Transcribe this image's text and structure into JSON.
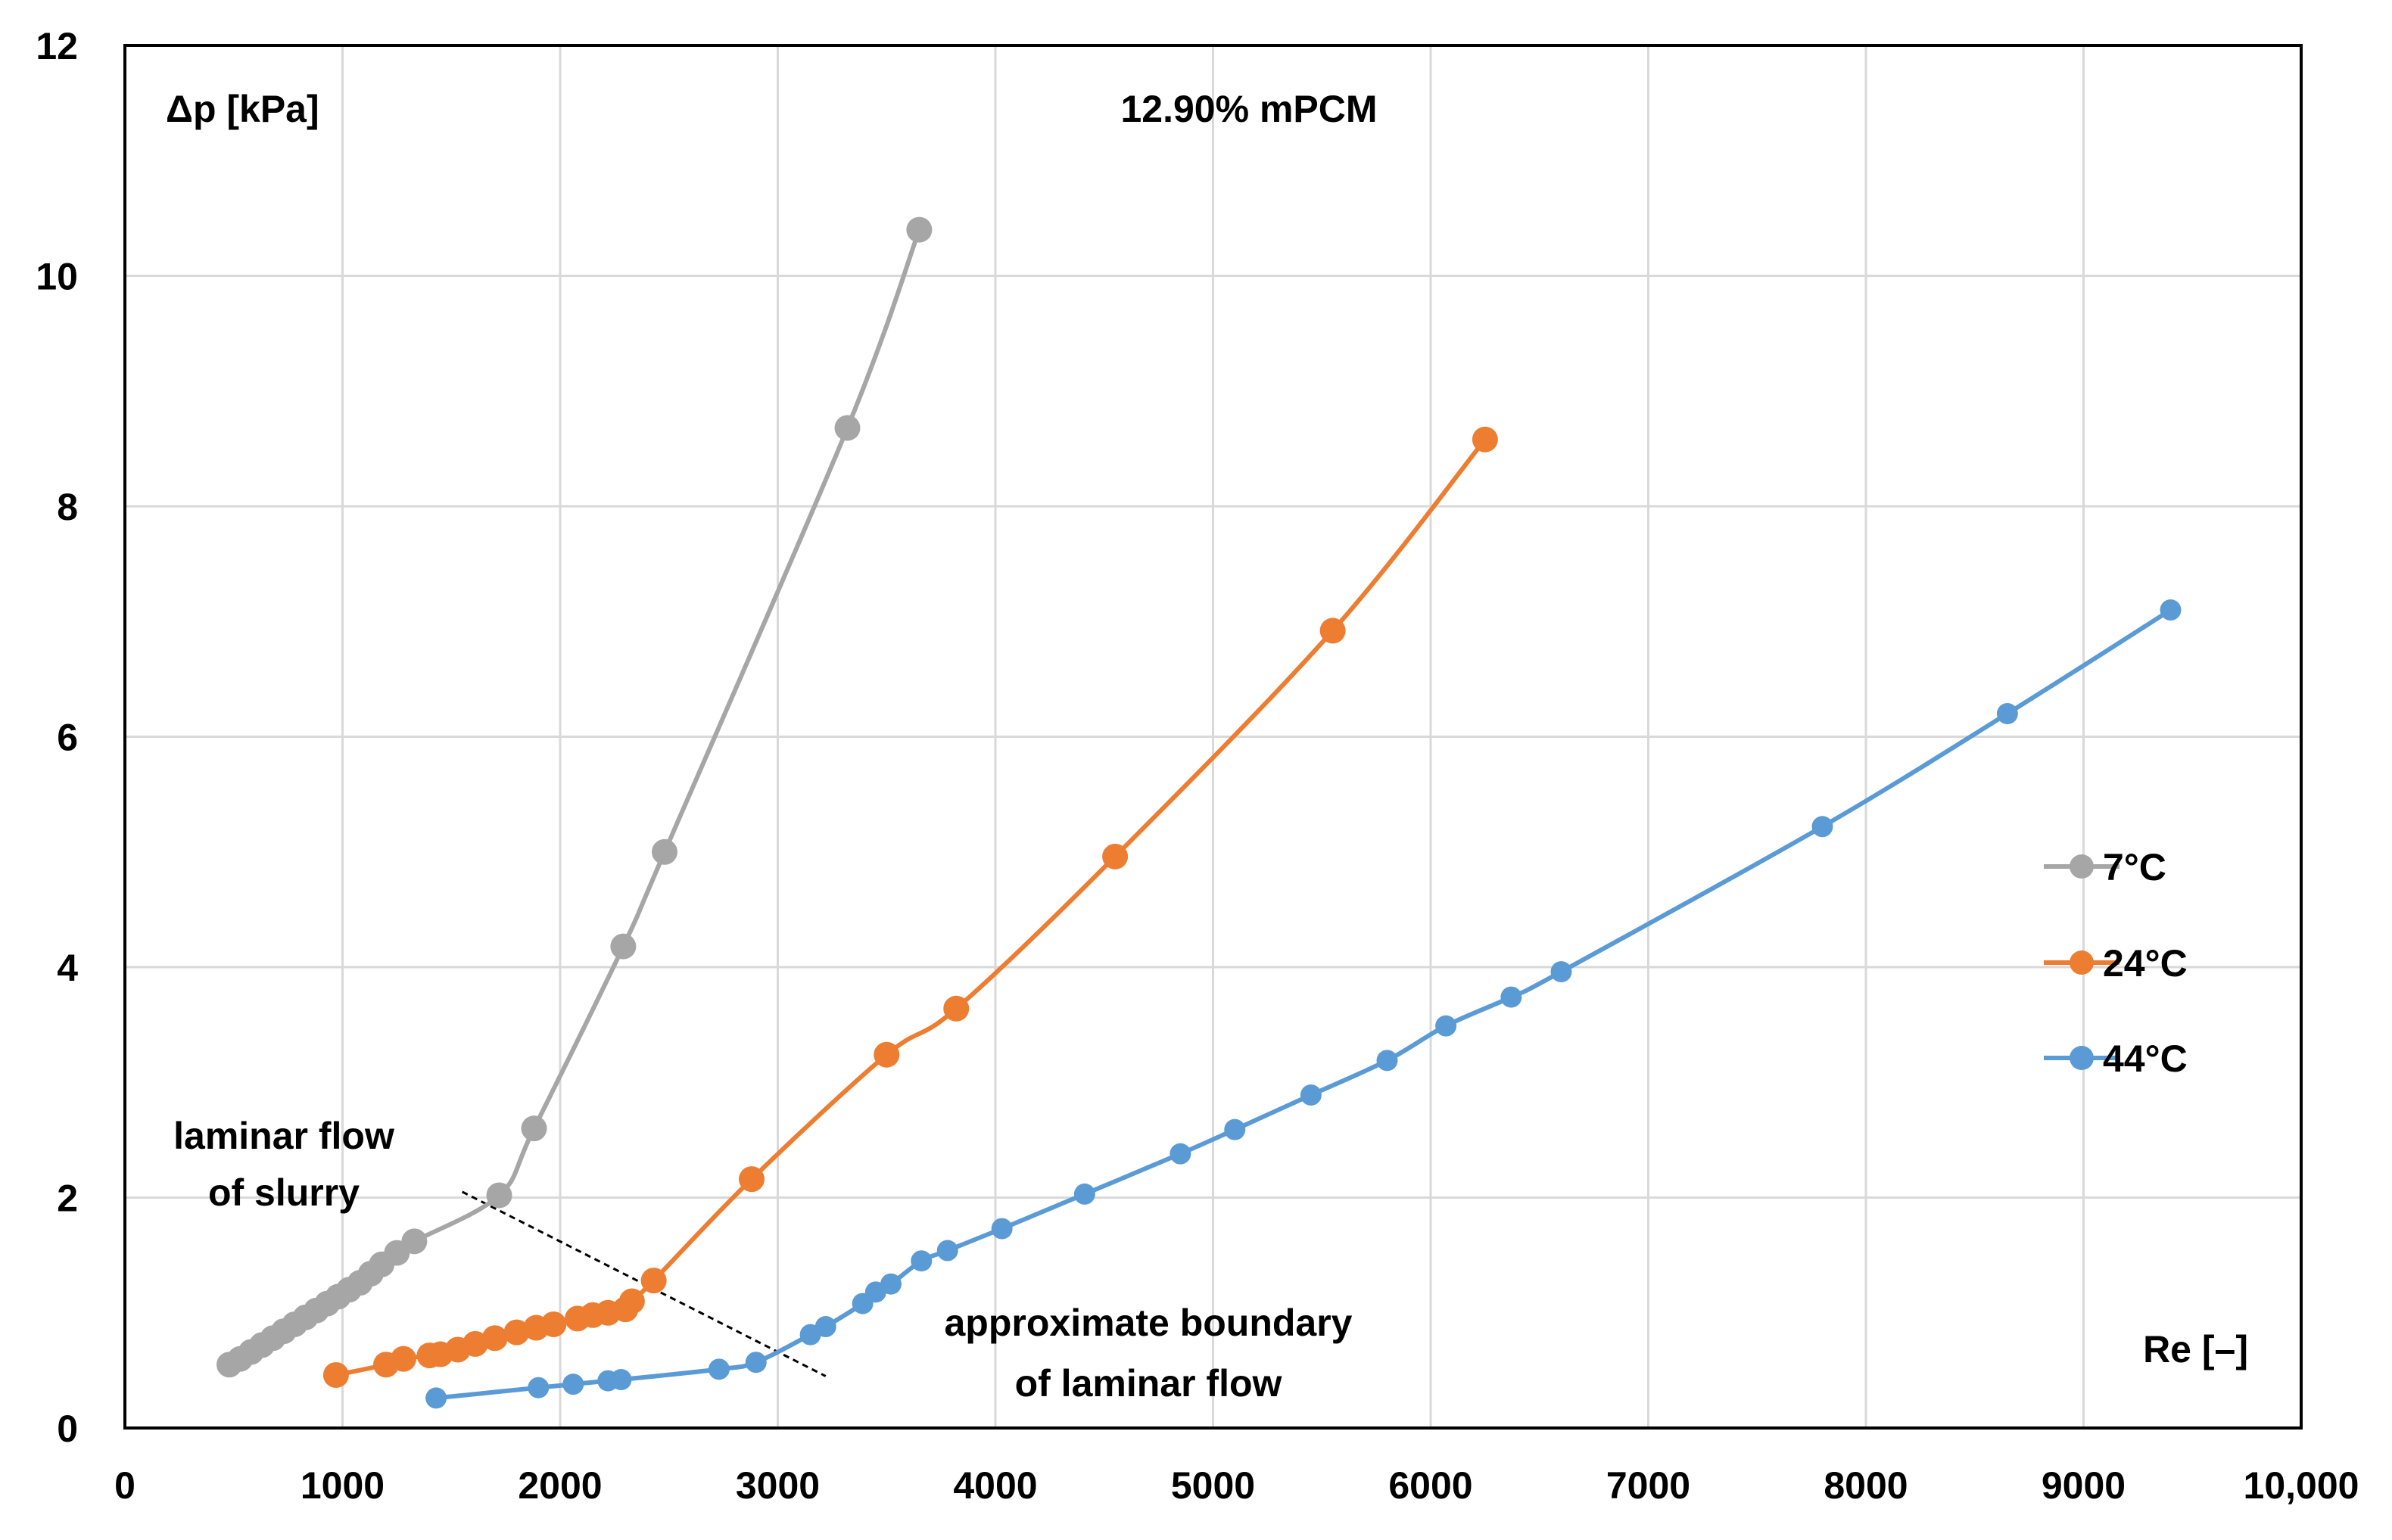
{
  "chart_data": {
    "type": "line",
    "title": "12.90% mPCM",
    "xlabel": "Re [–]",
    "ylabel": "Δp [kPa]",
    "xlim": [
      0,
      10000
    ],
    "ylim": [
      0,
      12
    ],
    "x_ticks": [
      0,
      1000,
      2000,
      3000,
      4000,
      5000,
      6000,
      7000,
      8000,
      9000,
      10000
    ],
    "x_tick_labels": [
      "0",
      "1000",
      "2000",
      "3000",
      "4000",
      "5000",
      "6000",
      "7000",
      "8000",
      "9000",
      "10,000"
    ],
    "y_ticks": [
      0,
      2,
      4,
      6,
      8,
      10,
      12
    ],
    "y_tick_labels": [
      "0",
      "2",
      "4",
      "6",
      "8",
      "10",
      "12"
    ],
    "grid": true,
    "legend_position": "right",
    "series": [
      {
        "name": "7°C",
        "color": "#a6a6a6",
        "points": [
          [
            480,
            0.55
          ],
          [
            530,
            0.6
          ],
          [
            580,
            0.66
          ],
          [
            630,
            0.72
          ],
          [
            680,
            0.78
          ],
          [
            730,
            0.84
          ],
          [
            780,
            0.9
          ],
          [
            830,
            0.96
          ],
          [
            880,
            1.02
          ],
          [
            930,
            1.08
          ],
          [
            980,
            1.14
          ],
          [
            1030,
            1.2
          ],
          [
            1080,
            1.26
          ],
          [
            1130,
            1.34
          ],
          [
            1180,
            1.42
          ],
          [
            1250,
            1.52
          ],
          [
            1330,
            1.62
          ],
          [
            1720,
            2.02
          ],
          [
            1880,
            2.6
          ],
          [
            2290,
            4.18
          ],
          [
            2480,
            5.0
          ],
          [
            3320,
            8.68
          ],
          [
            3650,
            10.4
          ]
        ]
      },
      {
        "name": "24°C",
        "color": "#ed7d31",
        "points": [
          [
            970,
            0.46
          ],
          [
            1200,
            0.55
          ],
          [
            1280,
            0.6
          ],
          [
            1400,
            0.63
          ],
          [
            1450,
            0.64
          ],
          [
            1530,
            0.68
          ],
          [
            1610,
            0.73
          ],
          [
            1700,
            0.78
          ],
          [
            1800,
            0.83
          ],
          [
            1890,
            0.87
          ],
          [
            1970,
            0.9
          ],
          [
            2080,
            0.95
          ],
          [
            2150,
            0.98
          ],
          [
            2220,
            1.0
          ],
          [
            2300,
            1.03
          ],
          [
            2330,
            1.1
          ],
          [
            2430,
            1.28
          ],
          [
            2880,
            2.16
          ],
          [
            3500,
            3.24
          ],
          [
            3820,
            3.64
          ],
          [
            4550,
            4.96
          ],
          [
            5550,
            6.92
          ],
          [
            6250,
            8.58
          ]
        ]
      },
      {
        "name": "44°C",
        "color": "#5b9bd5",
        "points": [
          [
            1430,
            0.26
          ],
          [
            1900,
            0.35
          ],
          [
            2060,
            0.38
          ],
          [
            2220,
            0.41
          ],
          [
            2280,
            0.42
          ],
          [
            2730,
            0.51
          ],
          [
            2900,
            0.57
          ],
          [
            3150,
            0.81
          ],
          [
            3220,
            0.88
          ],
          [
            3390,
            1.08
          ],
          [
            3450,
            1.18
          ],
          [
            3520,
            1.25
          ],
          [
            3660,
            1.45
          ],
          [
            3780,
            1.54
          ],
          [
            4030,
            1.73
          ],
          [
            4410,
            2.03
          ],
          [
            4850,
            2.38
          ],
          [
            5100,
            2.59
          ],
          [
            5450,
            2.89
          ],
          [
            5800,
            3.19
          ],
          [
            6070,
            3.49
          ],
          [
            6370,
            3.74
          ],
          [
            6600,
            3.96
          ],
          [
            7800,
            5.22
          ],
          [
            8650,
            6.2
          ],
          [
            9400,
            7.1
          ]
        ]
      }
    ],
    "annotations": {
      "laminar_flow": [
        "laminar flow",
        "of slurry"
      ],
      "boundary": [
        "approximate boundary",
        "of laminar flow"
      ],
      "boundary_line": [
        [
          1550,
          2.05
        ],
        [
          3220,
          0.45
        ]
      ]
    }
  }
}
